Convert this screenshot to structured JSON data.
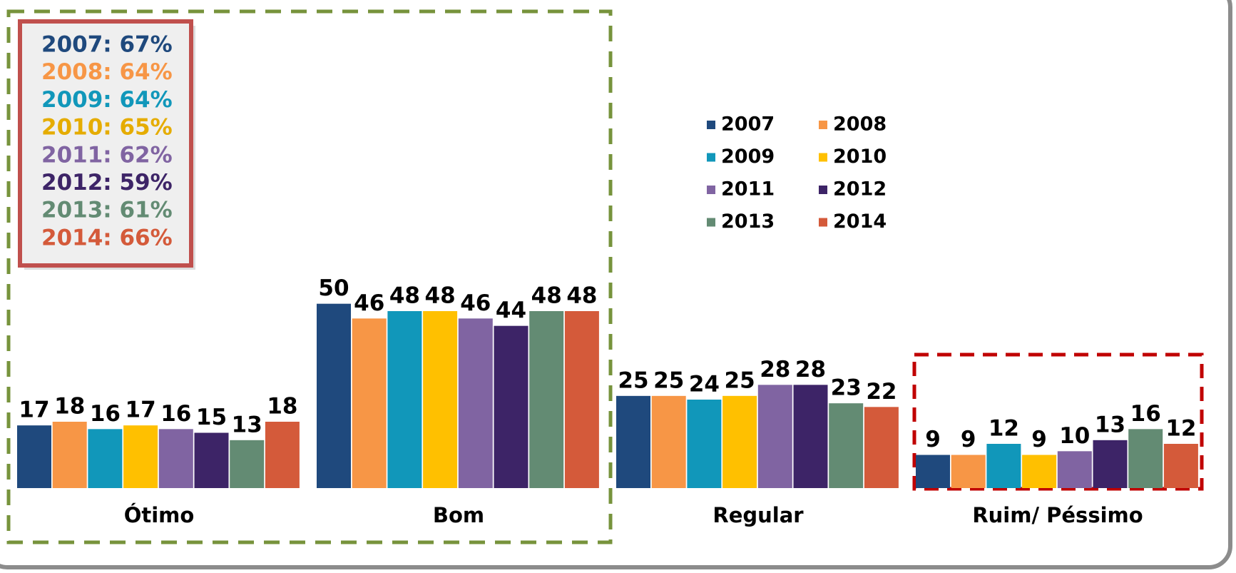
{
  "chart_data": {
    "type": "bar",
    "categories": [
      "Ótimo",
      "Bom",
      "Regular",
      "Ruim/ Péssimo"
    ],
    "series": [
      {
        "name": "2007",
        "color": "#1f497d",
        "values": [
          17,
          50,
          25,
          9
        ]
      },
      {
        "name": "2008",
        "color": "#f79646",
        "values": [
          18,
          46,
          25,
          9
        ]
      },
      {
        "name": "2009",
        "color": "#1197ba",
        "values": [
          16,
          48,
          24,
          12
        ]
      },
      {
        "name": "2010",
        "color": "#ffc000",
        "values": [
          17,
          48,
          25,
          9
        ]
      },
      {
        "name": "2011",
        "color": "#8064a2",
        "values": [
          16,
          46,
          28,
          10
        ]
      },
      {
        "name": "2012",
        "color": "#3d2467",
        "values": [
          15,
          44,
          28,
          13
        ]
      },
      {
        "name": "2013",
        "color": "#638b73",
        "values": [
          13,
          48,
          23,
          16
        ]
      },
      {
        "name": "2014",
        "color": "#d45a3a",
        "values": [
          18,
          48,
          22,
          12
        ]
      }
    ],
    "ylim": [
      0,
      60
    ],
    "annotations": [
      {
        "text": "2007: 67%",
        "color": "#1f497d"
      },
      {
        "text": "2008: 64%",
        "color": "#f79646"
      },
      {
        "text": "2009: 64%",
        "color": "#1197ba"
      },
      {
        "text": "2010: 65%",
        "color": "#e5ac00"
      },
      {
        "text": "2011: 62%",
        "color": "#8064a2"
      },
      {
        "text": "2012: 59%",
        "color": "#3d2467"
      },
      {
        "text": "2013: 61%",
        "color": "#638b73"
      },
      {
        "text": "2014: 66%",
        "color": "#d45a3a"
      }
    ]
  }
}
